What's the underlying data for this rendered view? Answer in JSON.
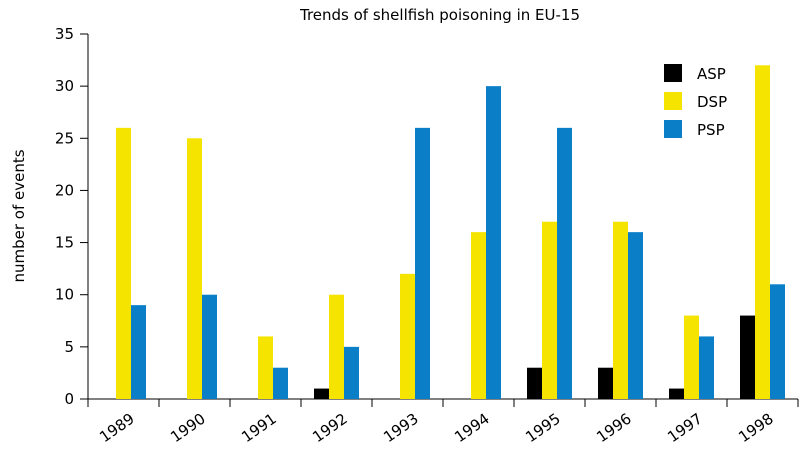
{
  "chart_data": {
    "type": "bar",
    "title": "Trends of shellfish poisoning in EU-15",
    "y_label": "number of events",
    "categories": [
      "1989",
      "1990",
      "1991",
      "1992",
      "1993",
      "1994",
      "1995",
      "1996",
      "1997",
      "1998"
    ],
    "series": [
      {
        "name": "ASP",
        "color": "#000000",
        "values": [
          0,
          0,
          0,
          1,
          0,
          0,
          3,
          3,
          1,
          8
        ]
      },
      {
        "name": "DSP",
        "color": "#f5e400",
        "values": [
          26,
          25,
          6,
          10,
          12,
          16,
          17,
          17,
          8,
          32
        ]
      },
      {
        "name": "PSP",
        "color": "#0a7fc8",
        "values": [
          9,
          10,
          3,
          5,
          26,
          30,
          26,
          16,
          6,
          11
        ]
      }
    ],
    "ylim": [
      0,
      35
    ],
    "yticks": [
      0,
      5,
      10,
      15,
      20,
      25,
      30,
      35
    ],
    "grid": false,
    "legend": "upper right"
  }
}
